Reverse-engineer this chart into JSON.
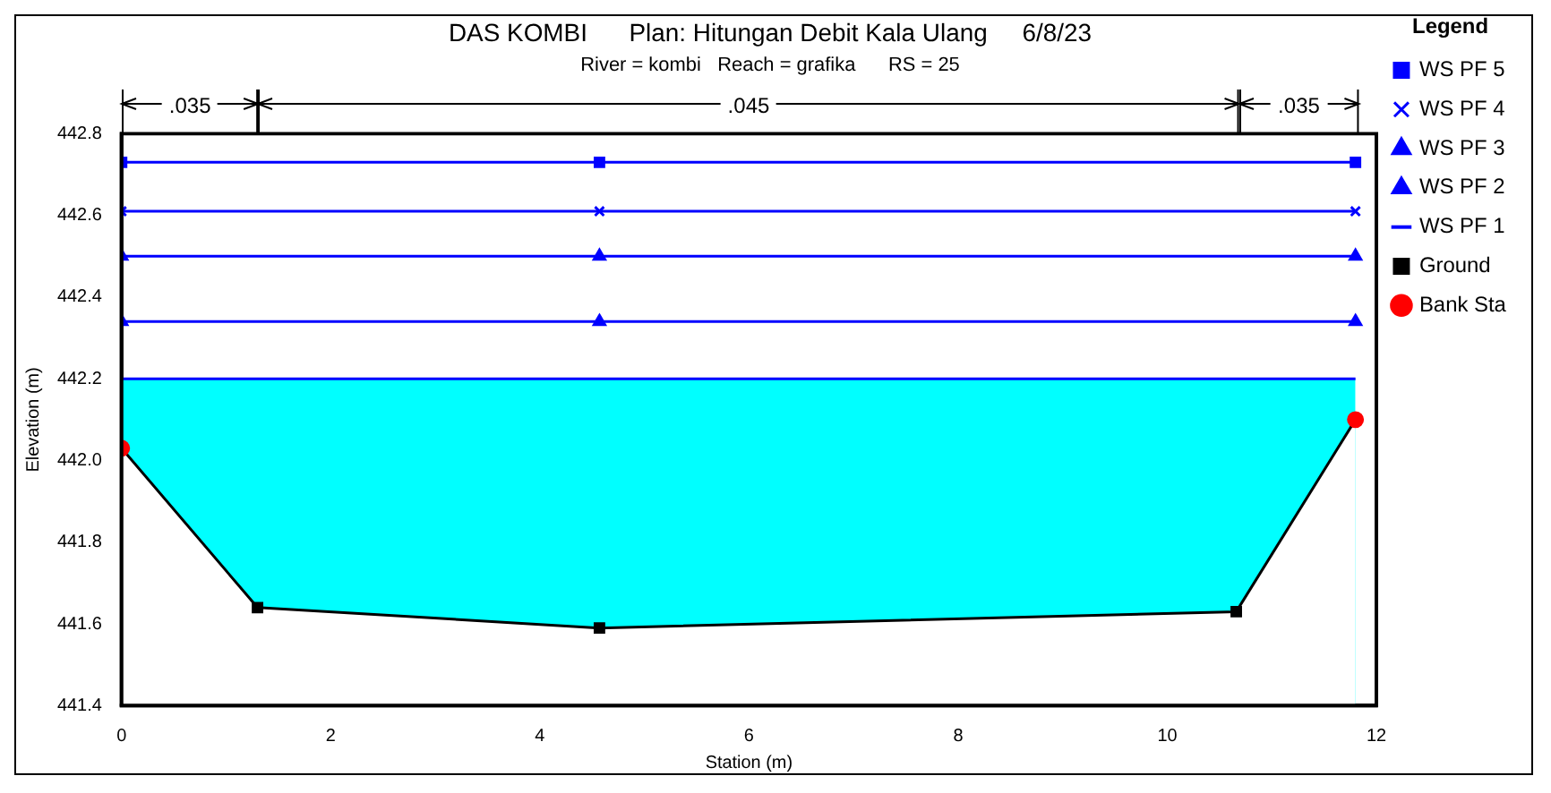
{
  "chart_data": {
    "type": "line",
    "title": "DAS KOMBI      Plan: Hitungan Debit Kala Ulang     6/8/23",
    "subtitle": "River = kombi   Reach = grafika      RS = 25",
    "xlabel": "Station (m)",
    "ylabel": "Elevation (m)",
    "legend_title": "Legend",
    "legend": "right",
    "grid": false,
    "xlim": [
      0,
      12
    ],
    "xticks": [
      0,
      2,
      4,
      6,
      8,
      10,
      12
    ],
    "ylim": [
      441.4,
      442.8
    ],
    "yticks": [
      441.4,
      441.6,
      441.8,
      {
        "value": 442,
        "label": "442.0"
      },
      442.2,
      442.4,
      442.6,
      442.8
    ],
    "annotations": [
      ".035",
      ".045",
      ".035"
    ],
    "series": [
      {
        "name": "WS PF 5",
        "color": "#0000ff",
        "marker": "square",
        "x": [
          0,
          4.57,
          11.8
        ],
        "values": [
          442.73,
          442.73,
          442.73
        ]
      },
      {
        "name": "WS PF 4",
        "color": "#0000ff",
        "marker": "cross",
        "x": [
          0,
          4.57,
          11.8
        ],
        "values": [
          442.61,
          442.61,
          442.61
        ]
      },
      {
        "name": "WS PF 3",
        "color": "#0000ff",
        "marker": "triangle",
        "x": [
          0,
          4.57,
          11.8
        ],
        "values": [
          442.5,
          442.5,
          442.5
        ]
      },
      {
        "name": "WS PF 2",
        "color": "#0000ff",
        "marker": "triangle",
        "x": [
          0,
          4.57,
          11.8
        ],
        "values": [
          442.34,
          442.34,
          442.34
        ]
      },
      {
        "name": "WS PF 1",
        "type": "area",
        "color": "#00ffff",
        "marker": "none",
        "x": [
          0,
          11.8
        ],
        "values": [
          442.2,
          442.2
        ]
      },
      {
        "name": "Ground",
        "color": "#000000",
        "marker": "square",
        "x": [
          0,
          1.3,
          4.57,
          10.66,
          11.8
        ],
        "values": [
          442.03,
          441.64,
          441.59,
          441.63,
          442.1
        ]
      },
      {
        "name": "Bank Sta",
        "type": "scatter",
        "color": "#ff0000",
        "marker": "circle",
        "x": [
          0,
          11.8
        ],
        "values": [
          442.03,
          442.1
        ]
      }
    ]
  }
}
